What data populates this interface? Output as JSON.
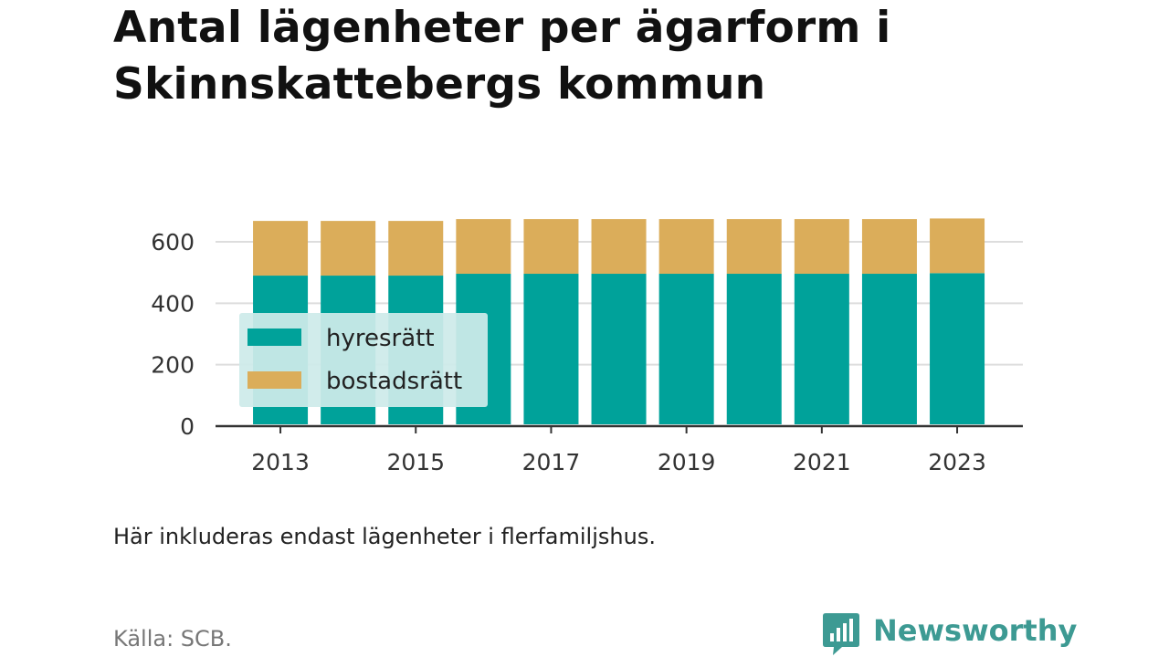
{
  "title_lines": [
    "Antal lägenheter per ägarform i",
    "Skinnskattebergs kommun"
  ],
  "note": "Här inkluderas endast lägenheter i flerfamiljshus.",
  "source": "Källa: SCB.",
  "brand": {
    "name": "Newsworthy",
    "icon": "newsworthy-bar-chart-logo-icon",
    "color": "#3d9a93"
  },
  "colors": {
    "hyresratt": "#00a29a",
    "bostadsratt": "#dbad5a",
    "legend_background": "#cdebea",
    "grid": "#dddddd",
    "axis": "#333333"
  },
  "chart_data": {
    "type": "bar",
    "stacked": true,
    "title": "Antal lägenheter per ägarform i Skinnskattebergs kommun",
    "xlabel": "",
    "ylabel": "",
    "categories": [
      "2013",
      "2014",
      "2015",
      "2016",
      "2017",
      "2018",
      "2019",
      "2020",
      "2021",
      "2022",
      "2023"
    ],
    "x_tick_labels": [
      "2013",
      "2015",
      "2017",
      "2019",
      "2021",
      "2023"
    ],
    "y_ticks": [
      0,
      200,
      400,
      600
    ],
    "ylim": [
      0,
      690
    ],
    "grid": true,
    "legend_position": "bottom-left (inside plot)",
    "series": [
      {
        "name": "hyresrätt",
        "color": "#00a29a",
        "values": [
          490,
          490,
          490,
          496,
          496,
          496,
          496,
          496,
          496,
          496,
          498
        ]
      },
      {
        "name": "bostadsrätt",
        "color": "#dbad5a",
        "values": [
          178,
          178,
          178,
          178,
          178,
          178,
          178,
          178,
          178,
          178,
          178
        ]
      }
    ]
  }
}
